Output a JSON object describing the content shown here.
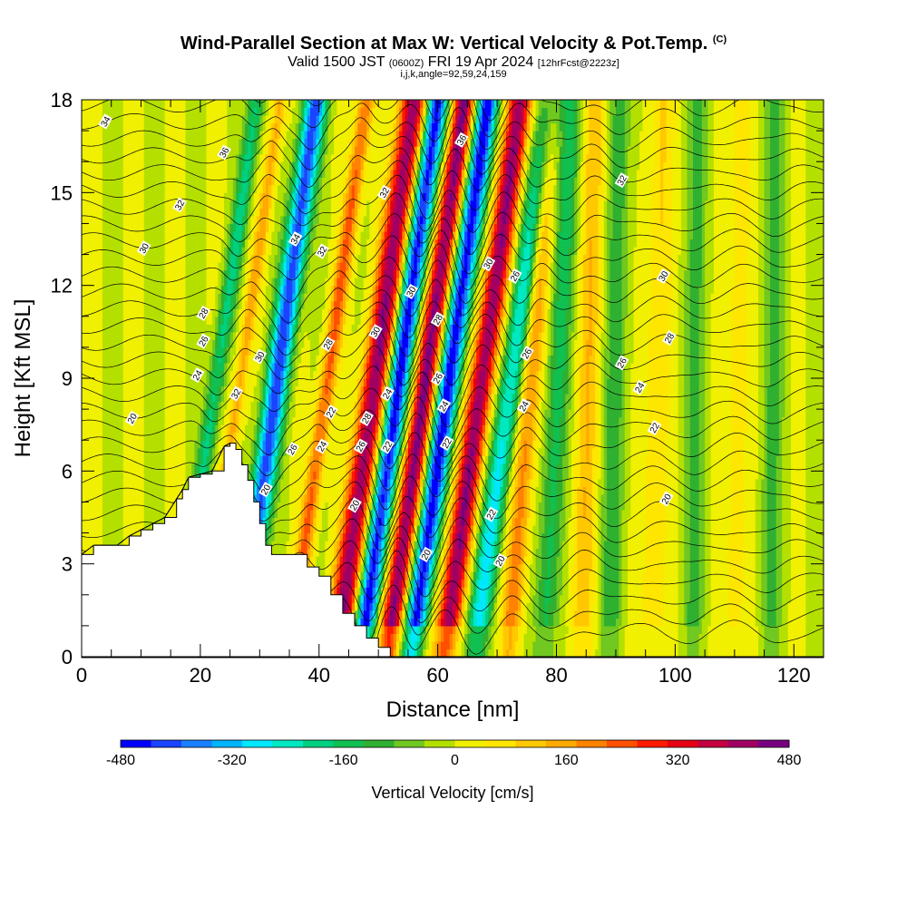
{
  "title": {
    "main": "Wind-Parallel Section at Max W: Vertical Velocity & Pot.Temp.",
    "copyright": "(C)",
    "valid_prefix": "Valid 1500 JST",
    "valid_utc": "(0600Z)",
    "valid_date": "FRI 19 Apr 2024",
    "forecast": "[12hrFcst@2223z]",
    "params": "i,j,k,angle=92,59,24,159"
  },
  "chart_data": {
    "type": "heatmap",
    "xlabel": "Distance [nm]",
    "ylabel": "Height [Kft MSL]",
    "xlim": [
      0,
      125
    ],
    "ylim": [
      0,
      18
    ],
    "x_ticks": [
      0,
      20,
      40,
      60,
      80,
      100,
      120
    ],
    "y_ticks": [
      0,
      3,
      6,
      9,
      12,
      15,
      18
    ],
    "colorbar": {
      "label": "Vertical Velocity [cm/s]",
      "range": [
        -480,
        480
      ],
      "tick_values": [
        -480,
        -320,
        -160,
        0,
        160,
        320,
        480
      ],
      "tick_labels": [
        "-480",
        "-320",
        "-160",
        "0",
        "160",
        "320",
        "480"
      ],
      "colors": [
        "#0000ff",
        "#1a44ff",
        "#1a80ff",
        "#00b4ff",
        "#00e8ff",
        "#00e8c0",
        "#00d080",
        "#10c050",
        "#30b030",
        "#70c820",
        "#b4e000",
        "#f0f000",
        "#ffe600",
        "#ffc800",
        "#ffaa00",
        "#ff8200",
        "#ff5000",
        "#ff1a00",
        "#e60014",
        "#c40040",
        "#a00064",
        "#780080"
      ]
    },
    "terrain": [
      [
        0,
        3.3
      ],
      [
        2,
        3.6
      ],
      [
        6,
        3.6
      ],
      [
        8,
        3.9
      ],
      [
        10,
        4.1
      ],
      [
        12,
        4.3
      ],
      [
        14,
        4.5
      ],
      [
        16,
        5.1
      ],
      [
        17,
        5.4
      ],
      [
        18,
        5.8
      ],
      [
        20,
        5.9
      ],
      [
        22,
        6.0
      ],
      [
        24,
        6.8
      ],
      [
        25,
        6.9
      ],
      [
        26,
        6.7
      ],
      [
        27,
        6.2
      ],
      [
        28,
        5.7
      ],
      [
        29,
        5.0
      ],
      [
        30,
        4.3
      ],
      [
        31,
        3.6
      ],
      [
        32,
        3.3
      ],
      [
        36,
        3.3
      ],
      [
        38,
        2.9
      ],
      [
        40,
        2.6
      ],
      [
        42,
        2.0
      ],
      [
        44,
        1.4
      ],
      [
        46,
        1.0
      ],
      [
        48,
        0.6
      ],
      [
        50,
        0.3
      ],
      [
        52,
        0.0
      ],
      [
        125,
        0.0
      ]
    ],
    "w_features": [
      {
        "x0": 16,
        "slope": 0.75,
        "amp": -190,
        "width": 1.4
      },
      {
        "x0": 20,
        "slope": 0.75,
        "amp": 150,
        "width": 1.2
      },
      {
        "x0": 26.5,
        "slope": 0.72,
        "amp": -420,
        "width": 1.9
      },
      {
        "x0": 35,
        "slope": 0.72,
        "amp": 230,
        "width": 1.4
      },
      {
        "x0": 43,
        "slope": 0.72,
        "amp": 430,
        "width": 2.2
      },
      {
        "x0": 47,
        "slope": 0.72,
        "amp": -470,
        "width": 1.8
      },
      {
        "x0": 51.5,
        "slope": 0.72,
        "amp": 450,
        "width": 1.8
      },
      {
        "x0": 55.5,
        "slope": 0.72,
        "amp": -470,
        "width": 1.8
      },
      {
        "x0": 61,
        "slope": 0.72,
        "amp": 430,
        "width": 2.0
      },
      {
        "x0": 66,
        "slope": 0.72,
        "amp": -280,
        "width": 2.0
      },
      {
        "x0": 72,
        "slope": 0.4,
        "amp": 200,
        "width": 1.8
      },
      {
        "x0": 78,
        "slope": 0.25,
        "amp": -150,
        "width": 2.0
      },
      {
        "x0": 84,
        "slope": 0.15,
        "amp": 120,
        "width": 2.0
      },
      {
        "x0": 89,
        "slope": 0.1,
        "amp": -110,
        "width": 2.0
      },
      {
        "x0": 96,
        "slope": 0.1,
        "amp": 90,
        "width": 2.0
      },
      {
        "x0": 103,
        "slope": 0.05,
        "amp": -90,
        "width": 2.0
      },
      {
        "x0": 110,
        "slope": 0.05,
        "amp": 70,
        "width": 2.0
      },
      {
        "x0": 116,
        "slope": 0.05,
        "amp": -90,
        "width": 2.0
      }
    ],
    "theta_contour_levels": [
      20,
      22,
      24,
      26,
      28,
      30,
      32,
      34,
      36
    ],
    "theta_contour_labels": [
      {
        "text": "34",
        "x": 4,
        "y": 17.3
      },
      {
        "text": "36",
        "x": 24,
        "y": 16.3
      },
      {
        "text": "32",
        "x": 16.5,
        "y": 14.6
      },
      {
        "text": "30",
        "x": 10.5,
        "y": 13.2
      },
      {
        "text": "34",
        "x": 36,
        "y": 13.5
      },
      {
        "text": "32",
        "x": 40.5,
        "y": 13.1
      },
      {
        "text": "32",
        "x": 51,
        "y": 15.0
      },
      {
        "text": "36",
        "x": 64,
        "y": 16.7
      },
      {
        "text": "32",
        "x": 91,
        "y": 15.4
      },
      {
        "text": "30",
        "x": 68.5,
        "y": 12.7
      },
      {
        "text": "26",
        "x": 73,
        "y": 12.3
      },
      {
        "text": "30",
        "x": 98,
        "y": 12.3
      },
      {
        "text": "28",
        "x": 20.5,
        "y": 11.1
      },
      {
        "text": "26",
        "x": 20.5,
        "y": 10.2
      },
      {
        "text": "24",
        "x": 19.5,
        "y": 9.1
      },
      {
        "text": "20",
        "x": 8.5,
        "y": 7.7
      },
      {
        "text": "30",
        "x": 30,
        "y": 9.7
      },
      {
        "text": "32",
        "x": 26,
        "y": 8.5
      },
      {
        "text": "28",
        "x": 41.5,
        "y": 10.1
      },
      {
        "text": "30",
        "x": 49.5,
        "y": 10.5
      },
      {
        "text": "30",
        "x": 55.5,
        "y": 11.8
      },
      {
        "text": "28",
        "x": 60,
        "y": 10.9
      },
      {
        "text": "26",
        "x": 60,
        "y": 9.0
      },
      {
        "text": "24",
        "x": 61,
        "y": 8.1
      },
      {
        "text": "22",
        "x": 61.5,
        "y": 6.9
      },
      {
        "text": "26",
        "x": 75,
        "y": 9.8
      },
      {
        "text": "24",
        "x": 74.5,
        "y": 8.1
      },
      {
        "text": "28",
        "x": 99,
        "y": 10.3
      },
      {
        "text": "26",
        "x": 91,
        "y": 9.5
      },
      {
        "text": "24",
        "x": 94,
        "y": 8.7
      },
      {
        "text": "22",
        "x": 96.5,
        "y": 7.4
      },
      {
        "text": "20",
        "x": 98.5,
        "y": 5.1
      },
      {
        "text": "22",
        "x": 42,
        "y": 7.9
      },
      {
        "text": "28",
        "x": 48,
        "y": 7.7
      },
      {
        "text": "24",
        "x": 51.5,
        "y": 8.5
      },
      {
        "text": "24",
        "x": 40.5,
        "y": 6.8
      },
      {
        "text": "26",
        "x": 35.5,
        "y": 6.7
      },
      {
        "text": "26",
        "x": 47,
        "y": 6.8
      },
      {
        "text": "22",
        "x": 51.5,
        "y": 6.8
      },
      {
        "text": "20",
        "x": 31,
        "y": 5.4
      },
      {
        "text": "20",
        "x": 46,
        "y": 4.9
      },
      {
        "text": "22",
        "x": 69,
        "y": 4.6
      },
      {
        "text": "20",
        "x": 58,
        "y": 3.3
      },
      {
        "text": "20",
        "x": 70.5,
        "y": 3.1
      }
    ]
  }
}
